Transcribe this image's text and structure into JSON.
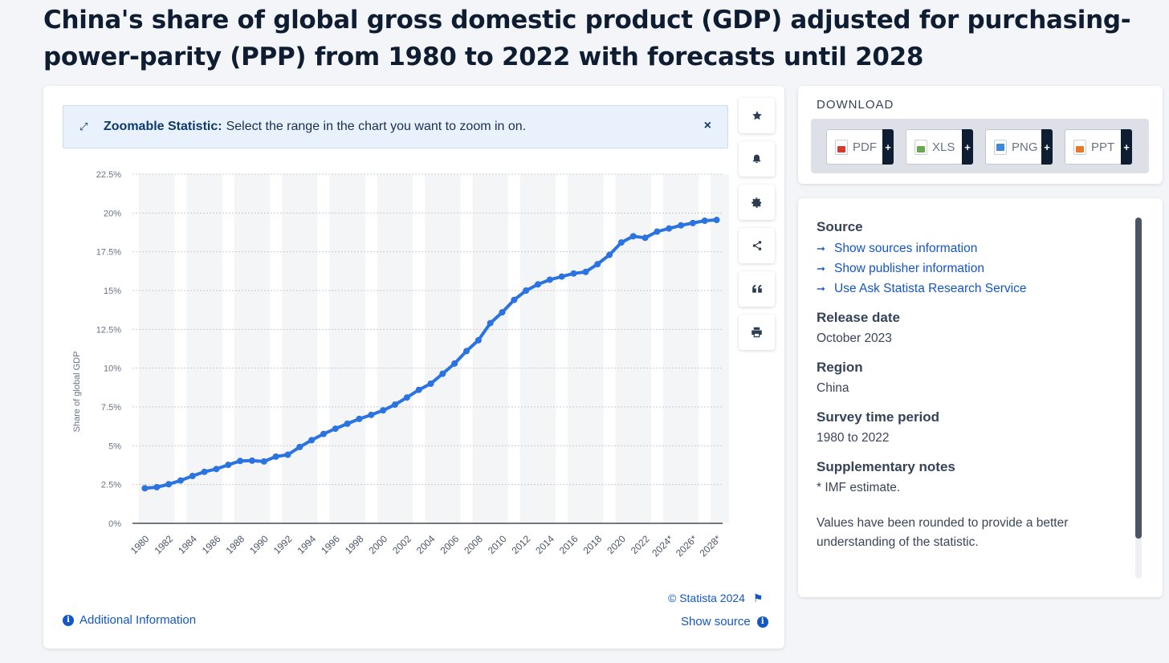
{
  "page": {
    "title": "China's share of global gross domestic product (GDP) adjusted for purchasing-power-parity (PPP) from 1980 to 2022 with forecasts until 2028"
  },
  "zoom_banner": {
    "bold": "Zoomable Statistic:",
    "text": "Select the range in the chart you want to zoom in on.",
    "close": "×"
  },
  "tools": [
    "star-icon",
    "bell-icon",
    "gear-icon",
    "share-icon",
    "quote-icon",
    "print-icon"
  ],
  "chart_data": {
    "type": "line",
    "ylabel": "Share of global GDP",
    "xlabel": "",
    "ylim": [
      0,
      22.5
    ],
    "yticks": [
      "0%",
      "2.5%",
      "5%",
      "7.5%",
      "10%",
      "12.5%",
      "15%",
      "17.5%",
      "20%",
      "22.5%"
    ],
    "x": [
      "1980",
      "1981",
      "1982",
      "1983",
      "1984",
      "1985",
      "1986",
      "1987",
      "1988",
      "1989",
      "1990",
      "1991",
      "1992",
      "1993",
      "1994",
      "1995",
      "1996",
      "1997",
      "1998",
      "1999",
      "2000",
      "2001",
      "2002",
      "2003",
      "2004",
      "2005",
      "2006",
      "2007",
      "2008",
      "2009",
      "2010",
      "2011",
      "2012",
      "2013",
      "2014",
      "2015",
      "2016",
      "2017",
      "2018",
      "2019",
      "2020",
      "2021",
      "2022",
      "2023*",
      "2024*",
      "2025*",
      "2026*",
      "2027*",
      "2028*"
    ],
    "xtick_labels": [
      "1980",
      "1982",
      "1984",
      "1986",
      "1988",
      "1990",
      "1992",
      "1994",
      "1996",
      "1998",
      "2000",
      "2002",
      "2004",
      "2006",
      "2008",
      "2010",
      "2012",
      "2014",
      "2016",
      "2018",
      "2020",
      "2022",
      "2024*",
      "2026*",
      "2028*"
    ],
    "series": [
      {
        "values": [
          2.26,
          2.33,
          2.52,
          2.76,
          3.05,
          3.32,
          3.5,
          3.77,
          4.02,
          4.04,
          3.99,
          4.3,
          4.42,
          4.92,
          5.36,
          5.76,
          6.1,
          6.42,
          6.73,
          6.99,
          7.28,
          7.65,
          8.11,
          8.6,
          9.0,
          9.64,
          10.3,
          11.1,
          11.8,
          12.9,
          13.6,
          14.4,
          15.0,
          15.4,
          15.7,
          15.9,
          16.1,
          16.2,
          16.7,
          17.3,
          18.1,
          18.5,
          18.4,
          18.8,
          19.0,
          19.2,
          19.35,
          19.5,
          19.55
        ]
      }
    ],
    "grid": true,
    "line_color": "#2a73e0"
  },
  "footer": {
    "credit": "© Statista 2024",
    "additional_info": "Additional Information",
    "show_source": "Show source"
  },
  "download": {
    "heading": "DOWNLOAD",
    "buttons": [
      {
        "label": "PDF",
        "color": "#d53a2f"
      },
      {
        "label": "XLS",
        "color": "#6aa84f"
      },
      {
        "label": "PNG",
        "color": "#3f8ad8"
      },
      {
        "label": "PPT",
        "color": "#e8772e"
      }
    ],
    "plus": "+"
  },
  "meta": {
    "source": {
      "heading": "Source",
      "links": [
        "Show sources information",
        "Show publisher information",
        "Use Ask Statista Research Service"
      ]
    },
    "release": {
      "heading": "Release date",
      "value": "October 2023"
    },
    "region": {
      "heading": "Region",
      "value": "China"
    },
    "period": {
      "heading": "Survey time period",
      "value": "1980 to 2022"
    },
    "notes": {
      "heading": "Supplementary notes",
      "value": "* IMF estimate.",
      "extra": "Values have been rounded to provide a better understanding of the statistic."
    }
  }
}
